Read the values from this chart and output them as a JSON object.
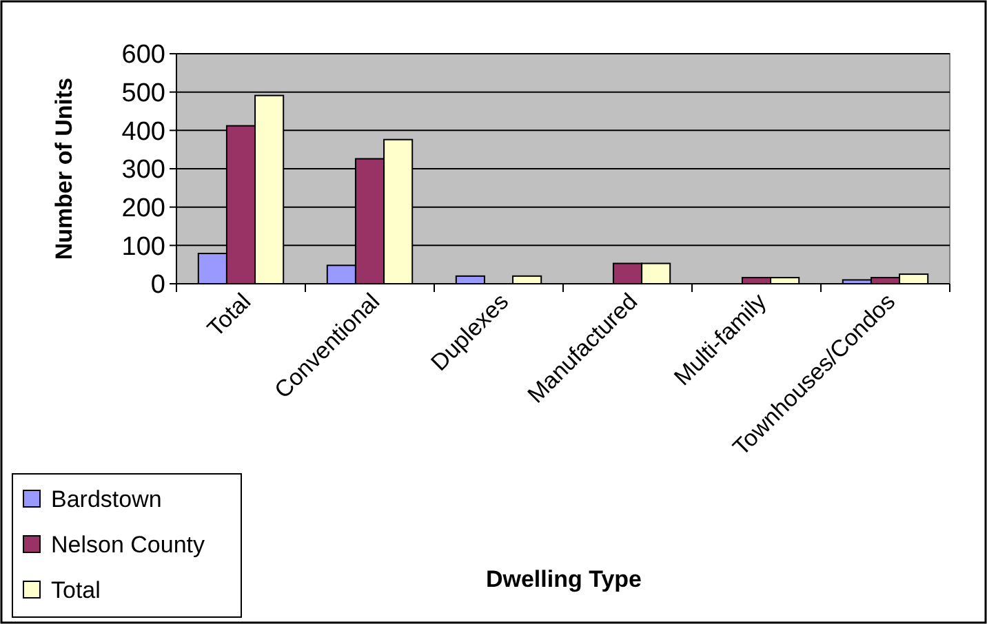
{
  "chart_data": {
    "type": "bar",
    "xlabel": "Dwelling Type",
    "ylabel": "Number of Units",
    "categories": [
      "Total",
      "Conventional",
      "Duplexes",
      "Manufactured",
      "Multi-family",
      "Townhouses/Condos"
    ],
    "series": [
      {
        "name": "Bardstown",
        "color": "#9999ff",
        "values": [
          79,
          48,
          20,
          0,
          0,
          10
        ]
      },
      {
        "name": "Nelson County",
        "color": "#993366",
        "values": [
          412,
          326,
          0,
          53,
          16,
          16
        ]
      },
      {
        "name": "Total",
        "color": "#ffffcc",
        "values": [
          491,
          376,
          20,
          53,
          16,
          25
        ]
      }
    ],
    "ylim": [
      0,
      600
    ],
    "yticks": [
      0,
      100,
      200,
      300,
      400,
      500,
      600
    ],
    "grid": "y",
    "legend": "bottom left"
  }
}
